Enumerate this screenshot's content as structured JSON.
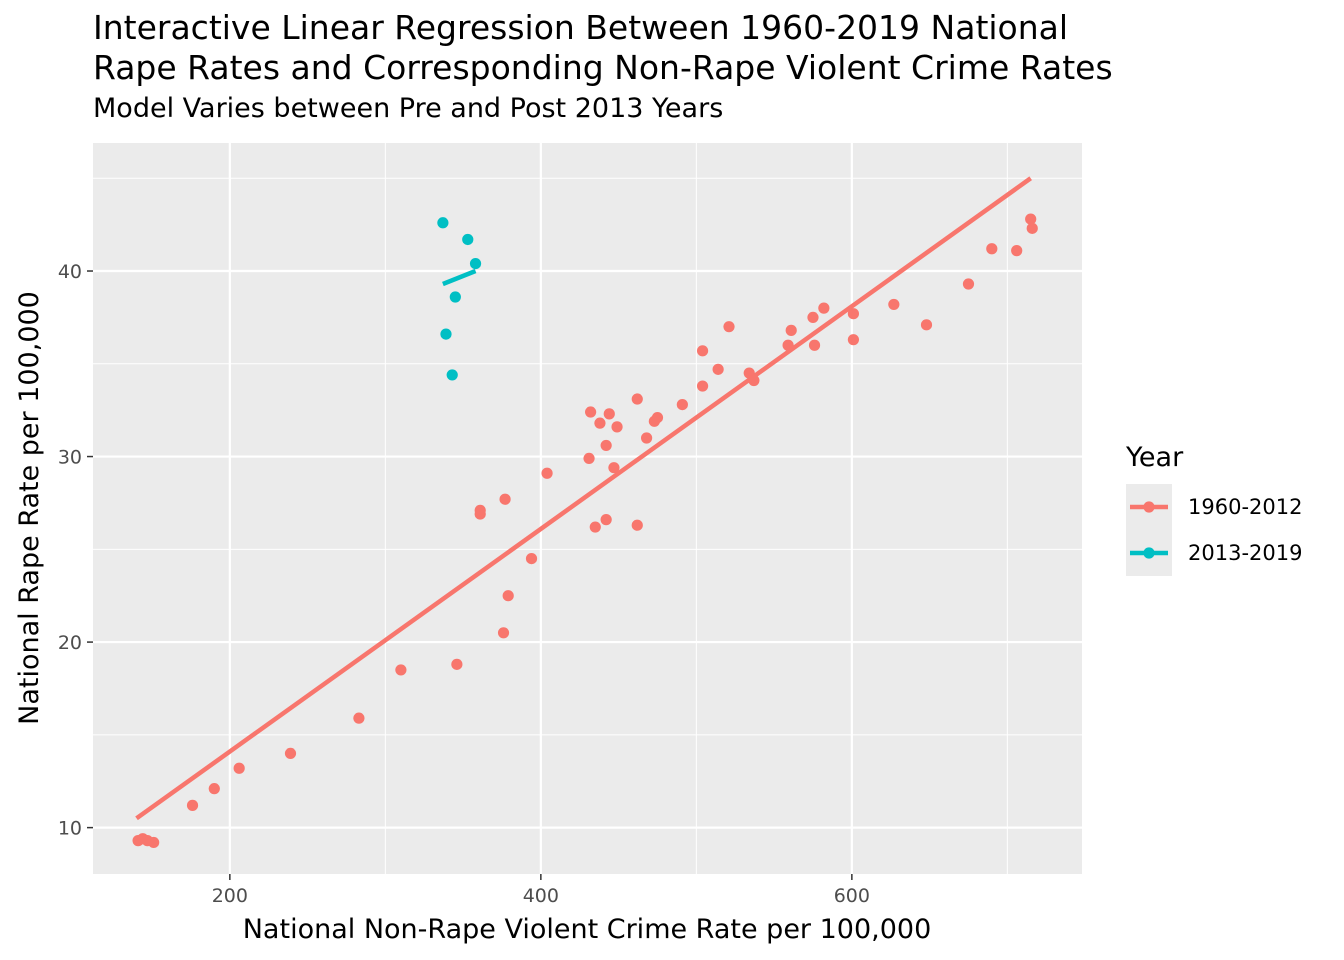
{
  "chart_data": {
    "type": "scatter",
    "title": "Interactive Linear Regression Between 1960-2019 National\nRape Rates and Corresponding Non-Rape Violent Crime Rates",
    "subtitle": "Model Varies between Pre and Post 2013 Years",
    "xlabel": "National Non-Rape Violent Crime Rate per 100,000",
    "ylabel": "National Rape Rate per 100,000",
    "xlim": [
      112,
      748
    ],
    "ylim": [
      7.5,
      46.9
    ],
    "x_ticks": [
      200,
      400,
      600
    ],
    "y_ticks": [
      10,
      20,
      30,
      40
    ],
    "grid": true,
    "legend_title": "Year",
    "legend_position": "right",
    "series": [
      {
        "name": "1960-2012",
        "color": "#F8766D",
        "points": [
          [
            141,
            9.3
          ],
          [
            144,
            9.4
          ],
          [
            147,
            9.3
          ],
          [
            151,
            9.2
          ],
          [
            176,
            11.2
          ],
          [
            190,
            12.1
          ],
          [
            206,
            13.2
          ],
          [
            239,
            14.0
          ],
          [
            283,
            15.9
          ],
          [
            310,
            18.5
          ],
          [
            346,
            18.8
          ],
          [
            361,
            26.9
          ],
          [
            361,
            27.1
          ],
          [
            376,
            20.5
          ],
          [
            377,
            27.7
          ],
          [
            379,
            22.5
          ],
          [
            394,
            24.5
          ],
          [
            404,
            29.1
          ],
          [
            431,
            29.9
          ],
          [
            432,
            32.4
          ],
          [
            435,
            26.2
          ],
          [
            438,
            31.8
          ],
          [
            442,
            30.6
          ],
          [
            442,
            26.6
          ],
          [
            444,
            32.3
          ],
          [
            447,
            29.4
          ],
          [
            449,
            31.6
          ],
          [
            462,
            33.1
          ],
          [
            462,
            26.3
          ],
          [
            468,
            31.0
          ],
          [
            473,
            31.9
          ],
          [
            475,
            32.1
          ],
          [
            491,
            32.8
          ],
          [
            504,
            33.8
          ],
          [
            504,
            35.7
          ],
          [
            514,
            34.7
          ],
          [
            521,
            37.0
          ],
          [
            534,
            34.5
          ],
          [
            537,
            34.1
          ],
          [
            559,
            36.0
          ],
          [
            561,
            36.8
          ],
          [
            575,
            37.5
          ],
          [
            576,
            36.0
          ],
          [
            582,
            38.0
          ],
          [
            601,
            36.3
          ],
          [
            601,
            37.7
          ],
          [
            627,
            38.2
          ],
          [
            648,
            37.1
          ],
          [
            675,
            39.3
          ],
          [
            690,
            41.2
          ],
          [
            706,
            41.1
          ],
          [
            715,
            42.8
          ],
          [
            716,
            42.3
          ]
        ],
        "fit": [
          [
            140,
            10.5
          ],
          [
            715,
            45.0
          ]
        ]
      },
      {
        "name": "2013-2019",
        "color": "#00BFC4",
        "points": [
          [
            337,
            42.6
          ],
          [
            339,
            36.6
          ],
          [
            343,
            34.4
          ],
          [
            345,
            38.6
          ],
          [
            353,
            41.7
          ],
          [
            358,
            40.4
          ]
        ],
        "fit": [
          [
            337,
            39.3
          ],
          [
            358,
            40.0
          ]
        ]
      }
    ]
  }
}
